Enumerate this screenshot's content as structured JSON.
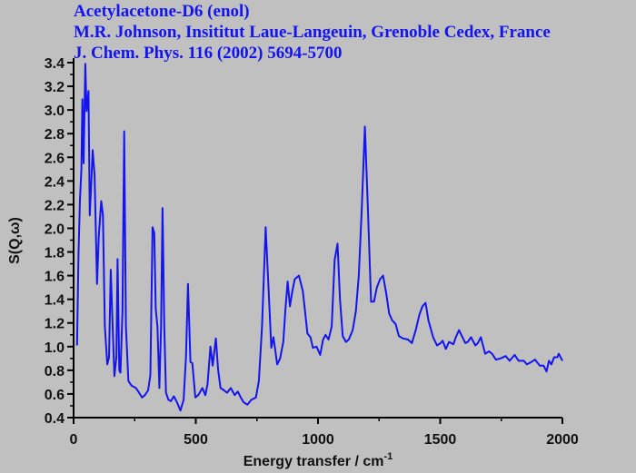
{
  "header": {
    "line1": "Acetylacetone-D6 (enol)",
    "line2": "M.R. Johnson, Insititut Laue-Langeuin, Grenoble Cedex, France",
    "line3": "J. Chem. Phys. 116 (2002) 5694-5700"
  },
  "colors": {
    "series": "#1414f0",
    "title": "#1414f0",
    "background": "#c0c0c0",
    "axis": "#000000"
  },
  "chart_data": {
    "type": "line",
    "title": "Acetylacetone-D6 (enol)",
    "xlabel": "Energy transfer / cm",
    "xlabel_sup": "-1",
    "ylabel": "S(Q,ω)",
    "xlim": [
      0,
      2000
    ],
    "ylim": [
      0.4,
      3.4
    ],
    "xticks": [
      "0",
      "500",
      "1000",
      "1500",
      "2000"
    ],
    "yticks": [
      "0.4",
      "0.6",
      "0.8",
      "1.0",
      "1.2",
      "1.4",
      "1.6",
      "1.8",
      "2.0",
      "2.2",
      "2.4",
      "2.6",
      "2.8",
      "3.0",
      "3.2",
      "3.4"
    ],
    "grid": false,
    "series": [
      {
        "name": "S(Q,ω)",
        "x": [
          14,
          20,
          26,
          32,
          36,
          41,
          48,
          53,
          61,
          66,
          71,
          78,
          86,
          96,
          103,
          113,
          120,
          128,
          138,
          145,
          152,
          160,
          167,
          175,
          180,
          187,
          192,
          200,
          207,
          214,
          224,
          237,
          255,
          268,
          280,
          292,
          305,
          314,
          323,
          330,
          336,
          343,
          351,
          358,
          364,
          371,
          378,
          388,
          398,
          410,
          423,
          437,
          450,
          460,
          468,
          478,
          486,
          498,
          510,
          527,
          539,
          548,
          560,
          569,
          582,
          591,
          601,
          616,
          628,
          643,
          659,
          672,
          684,
          696,
          711,
          727,
          746,
          758,
          771,
          786,
          798,
          809,
          818,
          833,
          845,
          858,
          867,
          876,
          885,
          895,
          905,
          922,
          938,
          957,
          969,
          979,
          994,
          1009,
          1021,
          1031,
          1043,
          1056,
          1068,
          1080,
          1090,
          1101,
          1114,
          1126,
          1142,
          1155,
          1167,
          1179,
          1192,
          1204,
          1217,
          1229,
          1241,
          1254,
          1266,
          1279,
          1291,
          1304,
          1318,
          1331,
          1347,
          1368,
          1384,
          1400,
          1415,
          1427,
          1440,
          1452,
          1471,
          1487,
          1502,
          1510,
          1523,
          1536,
          1554,
          1564,
          1577,
          1591,
          1603,
          1613,
          1626,
          1644,
          1654,
          1666,
          1684,
          1700,
          1712,
          1728,
          1747,
          1768,
          1784,
          1805,
          1821,
          1842,
          1855,
          1873,
          1888,
          1907,
          1923,
          1935,
          1945,
          1955,
          1966,
          1979,
          1985,
          2000
        ],
        "y": [
          1.01,
          1.78,
          2.24,
          2.5,
          3.09,
          2.55,
          3.39,
          2.99,
          3.16,
          2.11,
          2.32,
          2.66,
          2.45,
          1.53,
          1.93,
          2.23,
          2.11,
          1.17,
          0.85,
          0.91,
          1.65,
          1.17,
          0.75,
          0.91,
          1.74,
          0.8,
          0.78,
          1.3,
          2.82,
          1.17,
          0.71,
          0.67,
          0.65,
          0.61,
          0.57,
          0.59,
          0.63,
          0.76,
          2.01,
          1.96,
          1.32,
          1.17,
          0.65,
          1.17,
          2.17,
          1.17,
          0.61,
          0.55,
          0.54,
          0.58,
          0.53,
          0.46,
          0.55,
          0.91,
          1.53,
          0.87,
          0.86,
          0.57,
          0.59,
          0.65,
          0.59,
          0.68,
          1.0,
          0.84,
          1.07,
          0.81,
          0.65,
          0.63,
          0.61,
          0.65,
          0.59,
          0.62,
          0.57,
          0.53,
          0.51,
          0.55,
          0.57,
          0.71,
          1.17,
          2.01,
          1.47,
          0.99,
          1.08,
          0.85,
          0.9,
          1.04,
          1.32,
          1.55,
          1.34,
          1.47,
          1.57,
          1.6,
          1.47,
          1.11,
          1.08,
          0.99,
          1.0,
          0.93,
          1.06,
          1.1,
          1.06,
          1.17,
          1.73,
          1.87,
          1.4,
          1.09,
          1.04,
          1.06,
          1.14,
          1.3,
          1.6,
          2.17,
          2.86,
          2.17,
          1.38,
          1.38,
          1.5,
          1.57,
          1.6,
          1.45,
          1.28,
          1.22,
          1.19,
          1.09,
          1.07,
          1.06,
          1.03,
          1.14,
          1.27,
          1.34,
          1.37,
          1.22,
          1.08,
          1.01,
          1.03,
          1.05,
          0.98,
          1.04,
          1.02,
          1.08,
          1.14,
          1.08,
          1.03,
          1.04,
          1.08,
          1.01,
          1.03,
          1.08,
          0.94,
          0.96,
          0.94,
          0.89,
          0.9,
          0.92,
          0.88,
          0.93,
          0.88,
          0.88,
          0.85,
          0.87,
          0.89,
          0.84,
          0.84,
          0.79,
          0.88,
          0.85,
          0.91,
          0.91,
          0.94,
          0.88
        ]
      }
    ]
  }
}
